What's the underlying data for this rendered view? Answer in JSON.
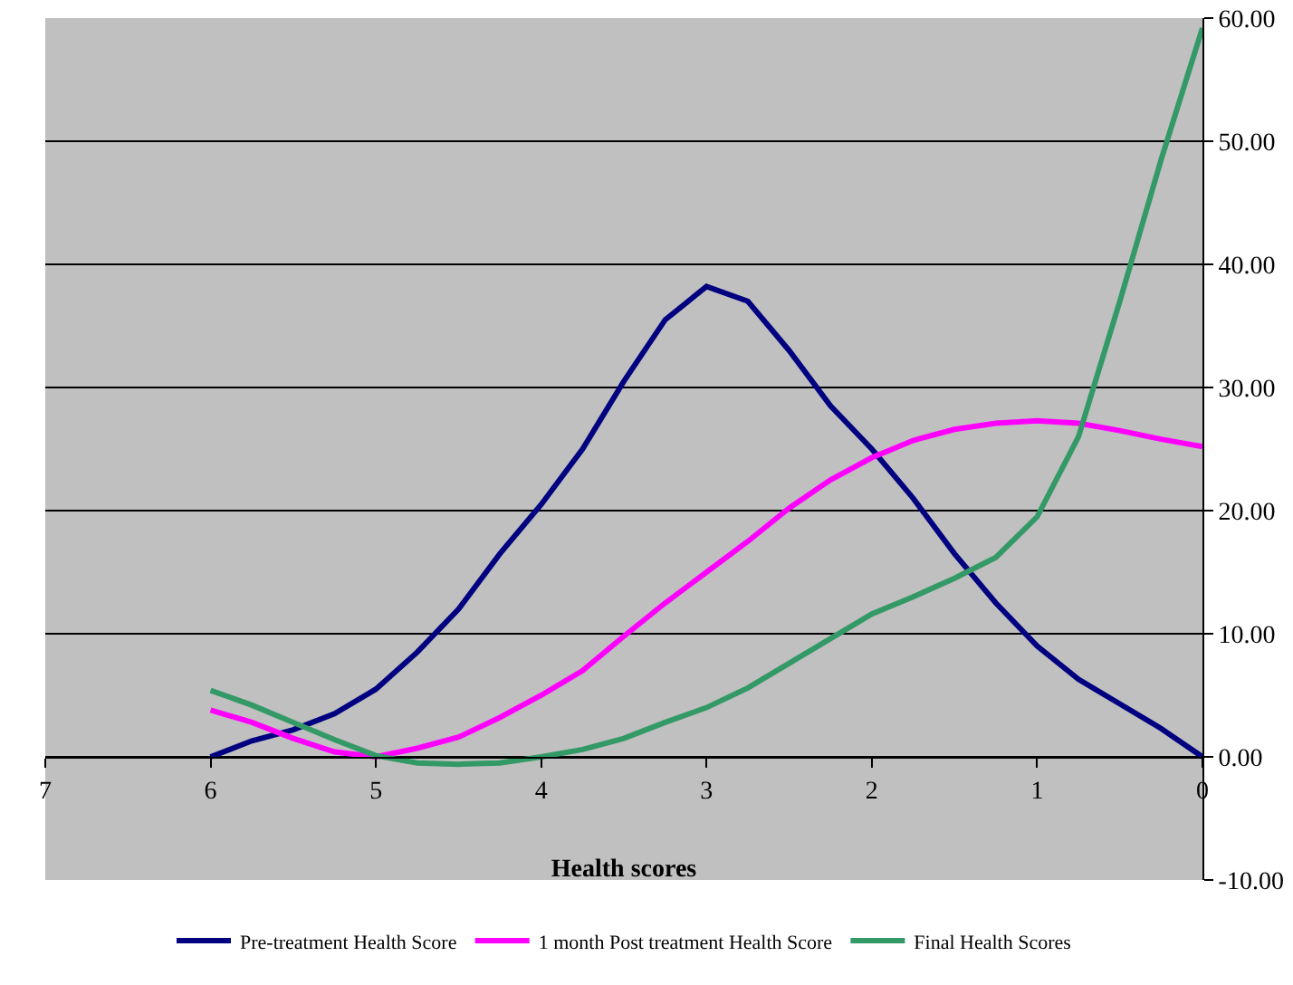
{
  "chart_data": {
    "type": "line",
    "xlabel": "Health scores",
    "x": [
      6,
      5.75,
      5.5,
      5.25,
      5,
      4.75,
      4.5,
      4.25,
      4,
      3.75,
      3.5,
      3.25,
      3,
      2.75,
      2.5,
      2.25,
      2,
      1.75,
      1.5,
      1.25,
      1,
      0.75,
      0.5,
      0.25,
      0
    ],
    "series": [
      {
        "name": "Pre-treatment Health Score",
        "color": "#000080",
        "values": [
          0,
          1.3,
          2.2,
          3.5,
          5.5,
          8.5,
          12,
          16.5,
          20.5,
          25,
          30.5,
          35.5,
          38.2,
          37,
          33,
          28.5,
          25,
          21,
          16.5,
          12.5,
          9,
          6.3,
          4.3,
          2.3,
          0
        ]
      },
      {
        "name": "1 month Post treatment Health Score",
        "color": "#ff00ff",
        "values": [
          3.8,
          2.8,
          1.5,
          0.4,
          0,
          0.7,
          1.6,
          3.2,
          5,
          7,
          9.8,
          12.5,
          15,
          17.5,
          20.2,
          22.5,
          24.3,
          25.7,
          26.6,
          27.1,
          27.3,
          27.1,
          26.5,
          25.8,
          25.2
        ]
      },
      {
        "name": "Final Health Scores",
        "color": "#339966",
        "values": [
          5.4,
          4.2,
          2.8,
          1.4,
          0.1,
          -0.5,
          -0.6,
          -0.5,
          0,
          0.6,
          1.5,
          2.8,
          4,
          5.6,
          7.6,
          9.6,
          11.6,
          13,
          14.5,
          16.2,
          19.5,
          26,
          37,
          48.5,
          59.2
        ]
      }
    ],
    "xlim": [
      7,
      0
    ],
    "xticks": [
      7,
      6,
      5,
      4,
      3,
      2,
      1,
      0
    ],
    "ylim": [
      -10,
      60
    ],
    "yticks": [
      {
        "value": -10,
        "label": "-10.00"
      },
      {
        "value": 0,
        "label": "0.00"
      },
      {
        "value": 10,
        "label": "10.00"
      },
      {
        "value": 20,
        "label": "20.00"
      },
      {
        "value": 30,
        "label": "30.00"
      },
      {
        "value": 40,
        "label": "40.00"
      },
      {
        "value": 50,
        "label": "50.00"
      },
      {
        "value": 60,
        "label": "60.00"
      }
    ],
    "grid": "y",
    "legend": "bottom",
    "marker": "none",
    "line_style": "solid"
  }
}
